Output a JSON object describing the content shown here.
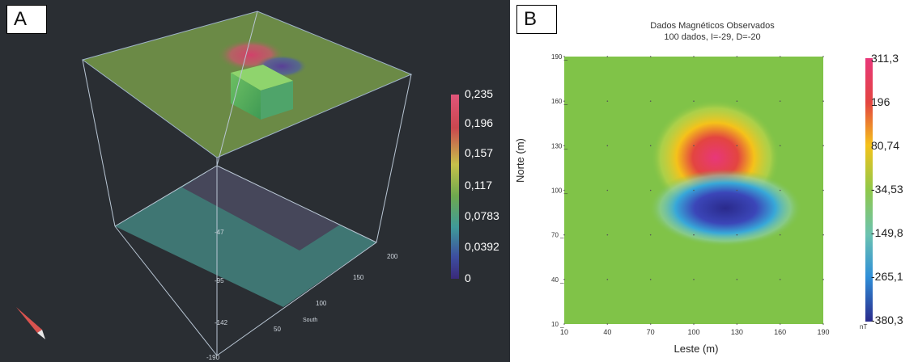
{
  "panel_a": {
    "label": "A",
    "colorbar_ticks": [
      "0,235",
      "0,196",
      "0,157",
      "0,117",
      "0,0783",
      "0,0392",
      "0"
    ],
    "depth_ticks": [
      "-47",
      "-95",
      "-142",
      "-190"
    ],
    "south_ticks": [
      "200",
      "150",
      "100",
      "50"
    ],
    "south_label": "South"
  },
  "panel_b": {
    "label": "B",
    "colorbar_unit": "nT",
    "colorbar_ticks": [
      "311,3",
      "196",
      "80,74",
      "-34,53",
      "-149,8",
      "-265,1",
      "-380,3"
    ]
  },
  "chart_data": [
    {
      "type": "surface-3d",
      "colorbar_range": [
        0,
        0.235
      ],
      "colorbar_ticks": [
        0.235,
        0.196,
        0.157,
        0.117,
        0.0783,
        0.0392,
        0
      ],
      "axis_ticks": {
        "depth": [
          -47,
          -95,
          -142,
          -190
        ],
        "south": [
          200,
          150,
          100,
          50
        ]
      }
    },
    {
      "type": "heatmap",
      "title": "Dados Magnéticos Observados",
      "subtitle": "100 dados, I=-29, D=-20",
      "xlabel": "Leste (m)",
      "ylabel": "Norte (m)",
      "x_ticks": [
        10,
        40,
        70,
        100,
        130,
        160,
        190
      ],
      "y_ticks": [
        190,
        160,
        130,
        100,
        70,
        40,
        10
      ],
      "xlim": [
        10,
        190
      ],
      "ylim": [
        10,
        190
      ],
      "colorbar_unit": "nT",
      "colorbar_range": [
        -380.3,
        311.3
      ],
      "colorbar_ticks": [
        311.3,
        196,
        80.74,
        -34.53,
        -149.8,
        -265.1,
        -380.3
      ],
      "anomalies": [
        {
          "kind": "positive",
          "x": 115,
          "y": 122,
          "peak": 311.3
        },
        {
          "kind": "negative",
          "x": 122,
          "y": 88,
          "trough": -380.3
        }
      ]
    }
  ]
}
